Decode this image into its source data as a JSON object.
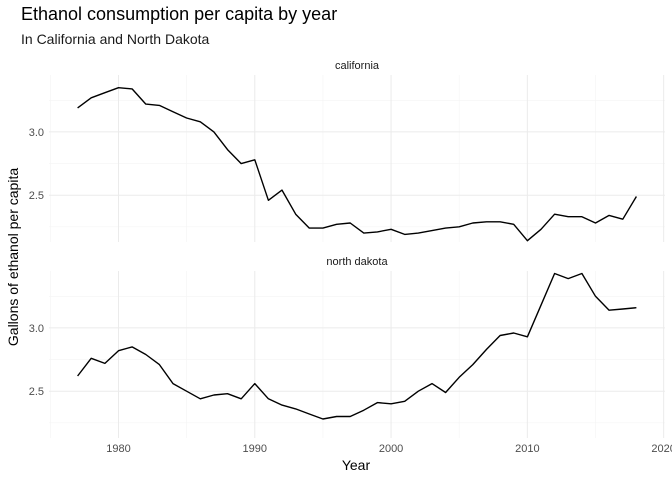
{
  "chart_data": {
    "type": "line",
    "title": "Ethanol consumption per capita by year",
    "subtitle": "In California and North Dakota",
    "xlabel": "Year",
    "ylabel": "Gallons of ethanol per capita",
    "xlim": [
      1977,
      2018
    ],
    "x_ticks": [
      1980,
      1990,
      2000,
      2010,
      2020
    ],
    "y_ticks": [
      2.5,
      3.0
    ],
    "grid": true,
    "facets": [
      {
        "name": "california",
        "ylim": [
          2.13,
          3.45
        ],
        "x": [
          1977,
          1978,
          1979,
          1980,
          1981,
          1982,
          1983,
          1984,
          1985,
          1986,
          1987,
          1988,
          1989,
          1990,
          1991,
          1992,
          1993,
          1994,
          1995,
          1996,
          1997,
          1998,
          1999,
          2000,
          2001,
          2002,
          2003,
          2004,
          2005,
          2006,
          2007,
          2008,
          2009,
          2010,
          2011,
          2012,
          2013,
          2014,
          2015,
          2016,
          2017,
          2018
        ],
        "values": [
          3.19,
          3.27,
          3.31,
          3.35,
          3.34,
          3.22,
          3.21,
          3.16,
          3.11,
          3.08,
          3.0,
          2.86,
          2.75,
          2.78,
          2.46,
          2.54,
          2.35,
          2.24,
          2.24,
          2.27,
          2.28,
          2.2,
          2.21,
          2.23,
          2.19,
          2.2,
          2.22,
          2.24,
          2.25,
          2.28,
          2.29,
          2.29,
          2.27,
          2.14,
          2.23,
          2.35,
          2.33,
          2.33,
          2.28,
          2.34,
          2.31,
          2.49
        ]
      },
      {
        "name": "north dakota",
        "ylim": [
          2.13,
          3.45
        ],
        "x": [
          1977,
          1978,
          1979,
          1980,
          1981,
          1982,
          1983,
          1984,
          1985,
          1986,
          1987,
          1988,
          1989,
          1990,
          1991,
          1992,
          1993,
          1994,
          1995,
          1996,
          1997,
          1998,
          1999,
          2000,
          2001,
          2002,
          2003,
          2004,
          2005,
          2006,
          2007,
          2008,
          2009,
          2010,
          2011,
          2012,
          2013,
          2014,
          2015,
          2016,
          2017,
          2018
        ],
        "values": [
          2.62,
          2.76,
          2.72,
          2.82,
          2.85,
          2.79,
          2.71,
          2.56,
          2.5,
          2.44,
          2.47,
          2.48,
          2.44,
          2.56,
          2.44,
          2.39,
          2.36,
          2.32,
          2.28,
          2.3,
          2.3,
          2.35,
          2.41,
          2.4,
          2.42,
          2.5,
          2.56,
          2.49,
          2.61,
          2.71,
          2.83,
          2.94,
          2.96,
          2.93,
          3.18,
          3.43,
          3.39,
          3.43,
          3.25,
          3.14,
          3.15,
          3.16
        ]
      }
    ]
  }
}
